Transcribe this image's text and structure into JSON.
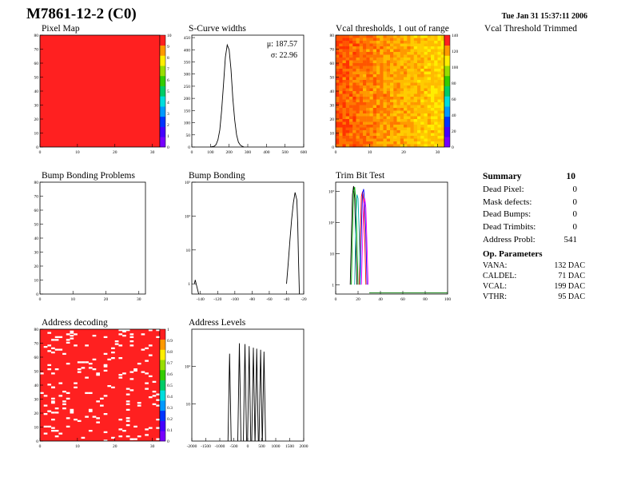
{
  "header": {
    "title": "M7861-12-2 (C0)",
    "timestamp": "Tue Jan 31 15:37:11 2006"
  },
  "extra_label": "Vcal Threshold Trimmed",
  "summary": {
    "title": "Summary",
    "value": "10",
    "rows": [
      {
        "label": "Dead Pixel:",
        "value": "0"
      },
      {
        "label": "Mask defects:",
        "value": "0"
      },
      {
        "label": "Dead Bumps:",
        "value": "0"
      },
      {
        "label": "Dead Trimbits:",
        "value": "0"
      },
      {
        "label": "Address Probl:",
        "value": "541"
      }
    ]
  },
  "op_params": {
    "title": "Op. Parameters",
    "rows": [
      {
        "label": "VANA:",
        "value": "132 DAC"
      },
      {
        "label": "CALDEL:",
        "value": "71 DAC"
      },
      {
        "label": "VCAL:",
        "value": "199 DAC"
      },
      {
        "label": "VTHR:",
        "value": "95 DAC"
      }
    ]
  },
  "chart_data": [
    {
      "id": "pixel_map",
      "type": "heatmap",
      "title": "Pixel Map",
      "xlim": [
        0,
        32
      ],
      "ylim": [
        0,
        80
      ],
      "xticks": [
        "0",
        "10",
        "20",
        "30"
      ],
      "yticks": [
        "0",
        "10",
        "20",
        "30",
        "40",
        "50",
        "60",
        "70",
        "80"
      ],
      "zlim": [
        0,
        10
      ],
      "zticks": [
        "0",
        "1",
        "2",
        "3",
        "4",
        "5",
        "6",
        "7",
        "8",
        "9",
        "10"
      ],
      "fill_value": 10
    },
    {
      "id": "scurve_widths",
      "type": "line",
      "title": "S-Curve widths",
      "xlim": [
        0,
        600
      ],
      "ylim": [
        0,
        460
      ],
      "xticks": [
        "0",
        "100",
        "200",
        "300",
        "400",
        "500",
        "600"
      ],
      "yticks": [
        "0",
        "50",
        "100",
        "150",
        "200",
        "250",
        "300",
        "350",
        "400",
        "450"
      ],
      "stats": [
        "μ: 187.57",
        "σ: 22.96"
      ],
      "x": [
        100,
        120,
        130,
        140,
        150,
        160,
        170,
        180,
        190,
        200,
        210,
        220,
        230,
        240,
        250,
        260,
        270,
        280
      ],
      "y": [
        0,
        3,
        10,
        30,
        70,
        150,
        260,
        370,
        420,
        400,
        320,
        200,
        110,
        50,
        20,
        8,
        3,
        0
      ]
    },
    {
      "id": "vcal_thresholds",
      "type": "heatmap",
      "title": "Vcal thresholds, 1 out of range",
      "xlim": [
        0,
        32
      ],
      "ylim": [
        0,
        80
      ],
      "xticks": [
        "0",
        "10",
        "20",
        "30"
      ],
      "yticks": [
        "0",
        "10",
        "20",
        "30",
        "40",
        "50",
        "60",
        "70",
        "80"
      ],
      "zlim": [
        0,
        140
      ],
      "zticks": [
        "0",
        "20",
        "40",
        "60",
        "80",
        "100",
        "120",
        "140"
      ]
    },
    {
      "id": "bump_bonding_problems",
      "type": "heatmap",
      "title": "Bump Bonding Problems",
      "xlim": [
        0,
        32
      ],
      "ylim": [
        0,
        80
      ],
      "xticks": [
        "0",
        "10",
        "20",
        "30"
      ],
      "yticks": [
        "0",
        "10",
        "20",
        "30",
        "40",
        "50",
        "60",
        "70",
        "80"
      ]
    },
    {
      "id": "bump_bonding",
      "type": "line",
      "title": "Bump Bonding",
      "xlim": [
        -150,
        -20
      ],
      "log_y": true,
      "ylim": [
        0.5,
        1000
      ],
      "xticks": [
        "-140",
        "-120",
        "-100",
        "-80",
        "-60",
        "-40",
        "-20"
      ],
      "yticks": [
        "1",
        "10",
        "10²",
        "10³"
      ],
      "x": [
        -147,
        -146,
        -145,
        -142,
        -40,
        -38,
        -36,
        -34,
        -32,
        -30,
        -28,
        -27,
        -26,
        -25
      ],
      "y": [
        1,
        1.3,
        1,
        0.5,
        1,
        4,
        20,
        80,
        250,
        500,
        300,
        60,
        5,
        0.5
      ]
    },
    {
      "id": "trim_bit_test",
      "type": "line",
      "title": "Trim Bit Test",
      "xlim": [
        0,
        100
      ],
      "log_y": true,
      "ylim": [
        0.5,
        2000
      ],
      "xticks": [
        "0",
        "20",
        "40",
        "60",
        "80",
        "100"
      ],
      "yticks": [
        "1",
        "10",
        "10²",
        "10³"
      ],
      "series": [
        {
          "color": "#000000",
          "x": [
            13,
            14,
            15,
            16,
            17,
            18,
            19
          ],
          "y": [
            1,
            30,
            800,
            1500,
            600,
            20,
            1
          ]
        },
        {
          "color": "#00aa00",
          "x": [
            14,
            15,
            16,
            17,
            18,
            19,
            20
          ],
          "y": [
            1,
            50,
            1000,
            1400,
            500,
            30,
            1
          ]
        },
        {
          "color": "#ff0000",
          "x": [
            21,
            22,
            23,
            24,
            25,
            26,
            27
          ],
          "y": [
            1,
            40,
            700,
            1000,
            500,
            30,
            1
          ]
        },
        {
          "color": "#0000ff",
          "x": [
            22,
            23,
            24,
            25,
            26,
            27,
            28
          ],
          "y": [
            1,
            60,
            900,
            1200,
            400,
            40,
            1
          ]
        },
        {
          "color": "#ff00ff",
          "x": [
            23,
            24,
            25,
            26,
            27,
            28,
            29
          ],
          "y": [
            1,
            20,
            400,
            600,
            300,
            20,
            1
          ]
        },
        {
          "color": "#00aaaa",
          "x": [
            17,
            18,
            19,
            20,
            21,
            22
          ],
          "y": [
            1,
            100,
            800,
            600,
            50,
            1
          ]
        }
      ],
      "baseline": {
        "color": "#007700",
        "x": [
          30,
          100
        ],
        "y": [
          0.55,
          0.55
        ]
      }
    },
    {
      "id": "address_decoding",
      "type": "heatmap",
      "title": "Address decoding",
      "xlim": [
        0,
        32
      ],
      "ylim": [
        0,
        80
      ],
      "xticks": [
        "0",
        "10",
        "20",
        "30"
      ],
      "yticks": [
        "0",
        "10",
        "20",
        "30",
        "40",
        "50",
        "60",
        "70",
        "80"
      ],
      "zlim": [
        0,
        1
      ],
      "zticks": [
        "0",
        "0.1",
        "0.2",
        "0.3",
        "0.4",
        "0.5",
        "0.6",
        "0.7",
        "0.8",
        "0.9",
        "1"
      ],
      "bad_count": 541
    },
    {
      "id": "address_levels",
      "type": "line",
      "title": "Address Levels",
      "xlim": [
        -2000,
        2000
      ],
      "log_y": true,
      "ylim": [
        1,
        1000
      ],
      "xticks": [
        "-2000",
        "-1500",
        "-1000",
        "-500",
        "0",
        "500",
        "1000",
        "1500",
        "2000"
      ],
      "yticks": [
        "10",
        "10²"
      ],
      "peaks": [
        -650,
        -300,
        -100,
        50,
        200,
        320,
        460,
        580
      ],
      "peak_heights": [
        220,
        420,
        400,
        350,
        320,
        300,
        280,
        250
      ]
    }
  ]
}
